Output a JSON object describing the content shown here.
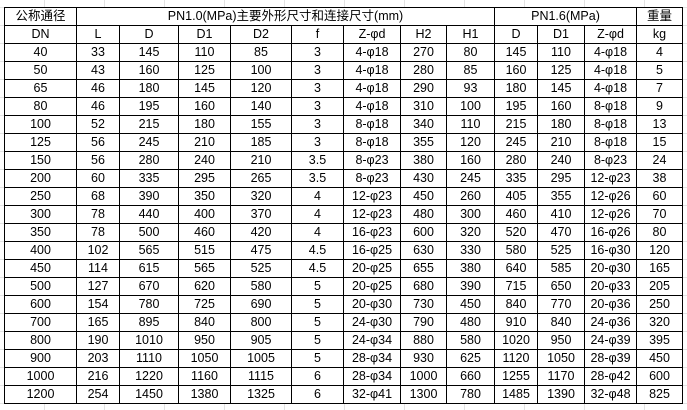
{
  "header": {
    "nominal_diameter": "公称通径",
    "pn10_group": "PN1.0(MPa)主要外形尺寸和连接尺寸(mm)",
    "pn16_group": "PN1.6(MPa)",
    "weight": "重量"
  },
  "columns": [
    "DN",
    "L",
    "D",
    "D1",
    "D2",
    "f",
    "Z-φd",
    "H2",
    "H1",
    "D",
    "D1",
    "Z-φd",
    "kg"
  ],
  "rows": [
    [
      "40",
      "33",
      "145",
      "110",
      "85",
      "3",
      "4-φ18",
      "270",
      "80",
      "145",
      "110",
      "4-φ18",
      "4"
    ],
    [
      "50",
      "43",
      "160",
      "125",
      "100",
      "3",
      "4-φ18",
      "280",
      "85",
      "160",
      "125",
      "4-φ18",
      "5"
    ],
    [
      "65",
      "46",
      "180",
      "145",
      "120",
      "3",
      "4-φ18",
      "290",
      "93",
      "180",
      "145",
      "4-φ18",
      "7"
    ],
    [
      "80",
      "46",
      "195",
      "160",
      "140",
      "3",
      "4-φ18",
      "310",
      "100",
      "195",
      "160",
      "8-φ18",
      "9"
    ],
    [
      "100",
      "52",
      "215",
      "180",
      "155",
      "3",
      "8-φ18",
      "340",
      "110",
      "215",
      "180",
      "8-φ18",
      "13"
    ],
    [
      "125",
      "56",
      "245",
      "210",
      "185",
      "3",
      "8-φ18",
      "355",
      "120",
      "245",
      "210",
      "8-φ18",
      "15"
    ],
    [
      "150",
      "56",
      "280",
      "240",
      "210",
      "3.5",
      "8-φ23",
      "380",
      "160",
      "280",
      "240",
      "8-φ23",
      "24"
    ],
    [
      "200",
      "60",
      "335",
      "295",
      "265",
      "3.5",
      "8-φ23",
      "430",
      "245",
      "335",
      "295",
      "12-φ23",
      "38"
    ],
    [
      "250",
      "68",
      "390",
      "350",
      "320",
      "4",
      "12-φ23",
      "450",
      "260",
      "405",
      "355",
      "12-φ26",
      "60"
    ],
    [
      "300",
      "78",
      "440",
      "400",
      "370",
      "4",
      "12-φ23",
      "480",
      "300",
      "460",
      "410",
      "12-φ26",
      "70"
    ],
    [
      "350",
      "78",
      "500",
      "460",
      "420",
      "4",
      "16-φ23",
      "600",
      "320",
      "520",
      "470",
      "16-φ26",
      "80"
    ],
    [
      "400",
      "102",
      "565",
      "515",
      "475",
      "4.5",
      "16-φ25",
      "630",
      "330",
      "580",
      "525",
      "16-φ30",
      "120"
    ],
    [
      "450",
      "114",
      "615",
      "565",
      "525",
      "4.5",
      "20-φ25",
      "655",
      "380",
      "640",
      "585",
      "20-φ30",
      "165"
    ],
    [
      "500",
      "127",
      "670",
      "620",
      "580",
      "5",
      "20-φ25",
      "680",
      "390",
      "715",
      "650",
      "20-φ33",
      "205"
    ],
    [
      "600",
      "154",
      "780",
      "725",
      "690",
      "5",
      "20-φ30",
      "730",
      "450",
      "840",
      "770",
      "20-φ36",
      "250"
    ],
    [
      "700",
      "165",
      "895",
      "840",
      "800",
      "5",
      "24-φ30",
      "790",
      "480",
      "910",
      "840",
      "24-φ36",
      "320"
    ],
    [
      "800",
      "190",
      "1010",
      "950",
      "905",
      "5",
      "24-φ34",
      "880",
      "580",
      "1020",
      "950",
      "24-φ39",
      "395"
    ],
    [
      "900",
      "203",
      "1110",
      "1050",
      "1005",
      "5",
      "28-φ34",
      "930",
      "625",
      "1120",
      "1050",
      "28-φ39",
      "450"
    ],
    [
      "1000",
      "216",
      "1220",
      "1160",
      "1115",
      "6",
      "28-φ34",
      "1000",
      "660",
      "1255",
      "1170",
      "28-φ42",
      "600"
    ],
    [
      "1200",
      "254",
      "1450",
      "1380",
      "1325",
      "6",
      "32-φ41",
      "1300",
      "780",
      "1485",
      "1390",
      "32-φ48",
      "825"
    ]
  ]
}
